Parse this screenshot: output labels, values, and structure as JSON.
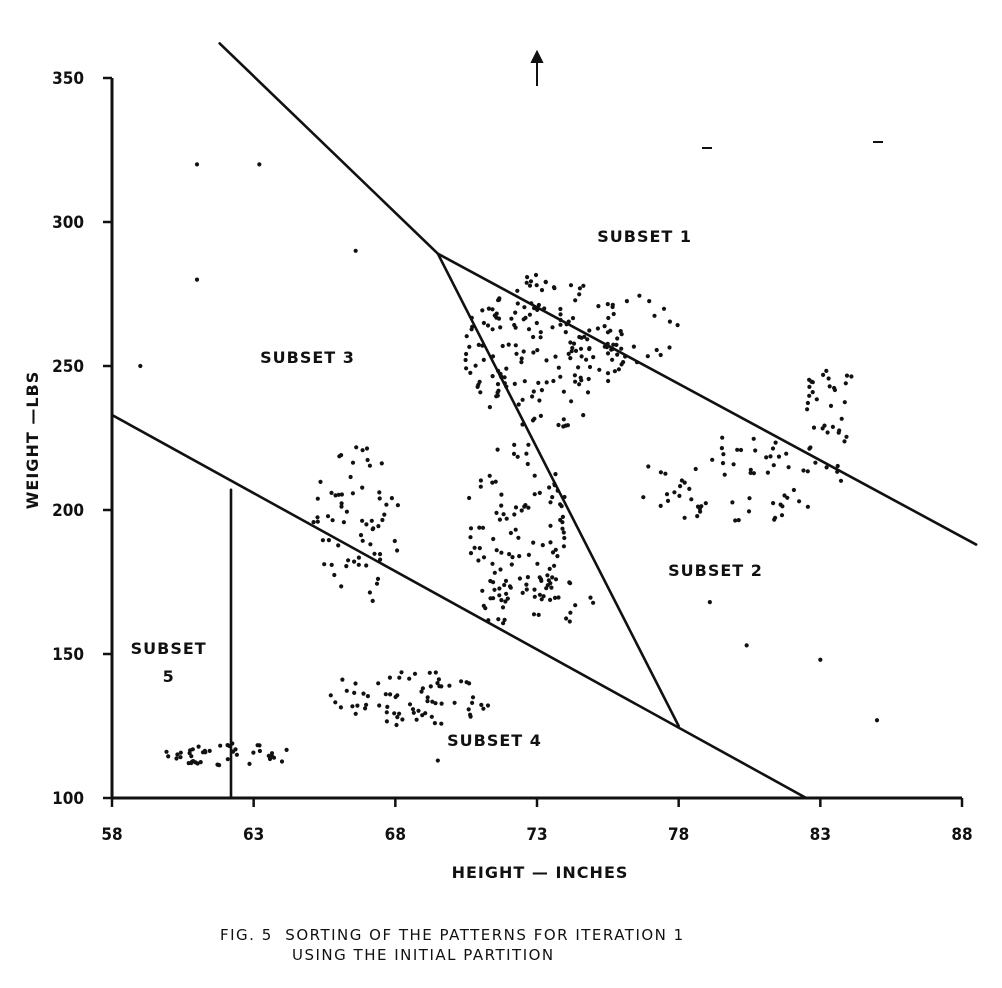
{
  "chart_data": {
    "type": "scatter",
    "xlabel": "HEIGHT — INCHES",
    "ylabel": "WEIGHT —LBS",
    "xlim": [
      58,
      88
    ],
    "ylim": [
      100,
      350
    ],
    "x_tick_labels": [
      "58",
      "63",
      "68",
      "73",
      "78",
      "83",
      "88"
    ],
    "y_tick_labels": [
      "100",
      "150",
      "200",
      "250",
      "300",
      "350"
    ],
    "x_ticks": [
      58,
      63,
      68,
      73,
      78,
      83,
      88
    ],
    "y_ticks": [
      100,
      150,
      200,
      250,
      300,
      350
    ],
    "grid": false,
    "boundaries": [
      {
        "name": "upper-left-line",
        "points": [
          [
            61.8,
            362
          ],
          [
            69.5,
            289
          ]
        ]
      },
      {
        "name": "upper-right-line",
        "points": [
          [
            69.5,
            289
          ],
          [
            88.5,
            188
          ]
        ]
      },
      {
        "name": "middle-diagonal-line",
        "points": [
          [
            69.5,
            289
          ],
          [
            78,
            125
          ]
        ]
      },
      {
        "name": "lower-line",
        "points": [
          [
            58,
            233
          ],
          [
            82.5,
            100
          ]
        ]
      },
      {
        "name": "subset5-vertical-line",
        "points": [
          [
            62.2,
            207
          ],
          [
            62.2,
            100
          ]
        ]
      }
    ],
    "region_labels": [
      {
        "lines": [
          "SUBSET 1"
        ],
        "x": 76.8,
        "y": 293
      },
      {
        "lines": [
          "SUBSET 2"
        ],
        "x": 79.3,
        "y": 177
      },
      {
        "lines": [
          "SUBSET 3"
        ],
        "x": 64.9,
        "y": 251
      },
      {
        "lines": [
          "SUBSET 4"
        ],
        "x": 71.5,
        "y": 118
      },
      {
        "lines": [
          "SUBSET",
          "5"
        ],
        "x": 60.0,
        "y": 150
      }
    ],
    "clusters": [
      {
        "name": "cluster-upper-center",
        "cx": 73.2,
        "cy": 255,
        "rx": 2.8,
        "ry": 27,
        "n": 170
      },
      {
        "name": "cluster-upper-right-arm",
        "cx": 76.5,
        "cy": 262,
        "rx": 1.5,
        "ry": 13,
        "n": 30
      },
      {
        "name": "cluster-center",
        "cx": 72.3,
        "cy": 195,
        "rx": 1.8,
        "ry": 30,
        "n": 100
      },
      {
        "name": "cluster-lower-center",
        "cx": 72.8,
        "cy": 168,
        "rx": 2.2,
        "ry": 10,
        "n": 35
      },
      {
        "name": "cluster-left-middle",
        "cx": 66.7,
        "cy": 195,
        "rx": 1.6,
        "ry": 28,
        "n": 65
      },
      {
        "name": "cluster-lower-middle",
        "cx": 68.5,
        "cy": 135,
        "rx": 3.0,
        "ry": 10,
        "n": 70
      },
      {
        "name": "cluster-bottom-left",
        "cx": 62.2,
        "cy": 115,
        "rx": 2.4,
        "ry": 4,
        "n": 45
      },
      {
        "name": "cluster-right-lower",
        "cx": 80.2,
        "cy": 210,
        "rx": 3.8,
        "ry": 16,
        "n": 70
      },
      {
        "name": "cluster-right-upper",
        "cx": 83.4,
        "cy": 236,
        "rx": 1.1,
        "ry": 14,
        "n": 30
      }
    ],
    "outliers": [
      [
        61,
        320
      ],
      [
        63.2,
        320
      ],
      [
        61,
        280
      ],
      [
        59,
        250
      ],
      [
        66.6,
        290
      ],
      [
        80.4,
        153
      ],
      [
        83,
        148
      ],
      [
        85,
        127
      ],
      [
        79.1,
        168
      ],
      [
        69.5,
        113
      ]
    ]
  },
  "caption": {
    "line1": "FIG. 5  SORTING OF THE PATTERNS FOR ITERATION 1",
    "line2": "USING THE INITIAL PARTITION"
  }
}
